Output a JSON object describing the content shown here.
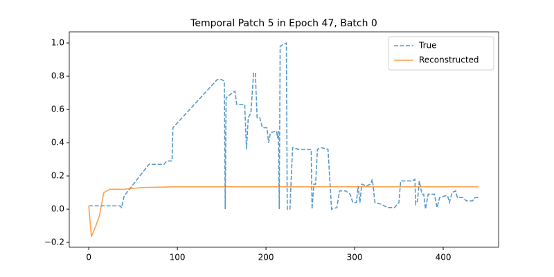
{
  "chart_data": {
    "type": "line",
    "title": "Temporal Patch 5 in Epoch 47, Batch 0",
    "xlim": [
      -22,
      462.5
    ],
    "ylim": [
      -0.229,
      1.067
    ],
    "xticks": [
      0,
      100,
      200,
      300,
      400
    ],
    "yticks": [
      {
        "value": -0.2,
        "label": "−0.2"
      },
      {
        "value": 0,
        "label": "0.0"
      },
      {
        "value": 0.2,
        "label": "0.2"
      },
      {
        "value": 0.4,
        "label": "0.4"
      },
      {
        "value": 0.6,
        "label": "0.6"
      },
      {
        "value": 0.8,
        "label": "0.8"
      },
      {
        "value": 1,
        "label": "1.0"
      }
    ],
    "legend": "upper right",
    "series": [
      {
        "name": "True",
        "color": "#1f77b4",
        "dash": true,
        "x": [
          0,
          35,
          37,
          40,
          68,
          85,
          88,
          94,
          95,
          145,
          150,
          153,
          154,
          155,
          162,
          165,
          167,
          176,
          178,
          180,
          183,
          186,
          188,
          190,
          193,
          196,
          201,
          203,
          205,
          212,
          213,
          214,
          215,
          216,
          219,
          223,
          224,
          227,
          230,
          237,
          251,
          252,
          254,
          256,
          258,
          262,
          270,
          274,
          280,
          283,
          290,
          295,
          298,
          302,
          304,
          306,
          308,
          313,
          318,
          320,
          323,
          330,
          337,
          345,
          350,
          352,
          365,
          368,
          369,
          371,
          373,
          376,
          378,
          380,
          383,
          390,
          393,
          396,
          402,
          405,
          407,
          410,
          414,
          416,
          422,
          426,
          433,
          436,
          440
        ],
        "values": [
          0.02,
          0.02,
          0.01,
          0.08,
          0.27,
          0.27,
          0.29,
          0.29,
          0.49,
          0.78,
          0.78,
          0.77,
          0,
          0.67,
          0.7,
          0.71,
          0.63,
          0.63,
          0.36,
          0.55,
          0.58,
          0.82,
          0.82,
          0.55,
          0.55,
          0.49,
          0.49,
          0.4,
          0.46,
          0.47,
          0.43,
          0.47,
          0,
          0.98,
          0.99,
          1.0,
          0,
          0,
          0.37,
          0.36,
          0.36,
          0,
          0.15,
          0.15,
          0.36,
          0.37,
          0.36,
          0,
          0.01,
          0.11,
          0.11,
          0.09,
          0.04,
          0.04,
          0.14,
          0.04,
          0.15,
          0.14,
          0.15,
          0.18,
          0.04,
          0.03,
          0.01,
          0.01,
          0.04,
          0.17,
          0.17,
          0.18,
          0.03,
          0.05,
          0.17,
          0.09,
          0.09,
          0,
          0.09,
          0.09,
          0.01,
          0.07,
          0.08,
          0.08,
          0.04,
          0.1,
          0.11,
          0.07,
          0.07,
          0.05,
          0.05,
          0.07,
          0.07
        ]
      },
      {
        "name": "Reconstructed",
        "color": "#ff7f0e",
        "dash": false,
        "x": [
          0,
          3,
          8,
          12,
          17,
          24,
          40,
          60,
          100,
          440
        ],
        "values": [
          0.02,
          -0.165,
          -0.1,
          -0.04,
          0.1,
          0.12,
          0.12,
          0.13,
          0.135,
          0.135
        ]
      }
    ]
  }
}
